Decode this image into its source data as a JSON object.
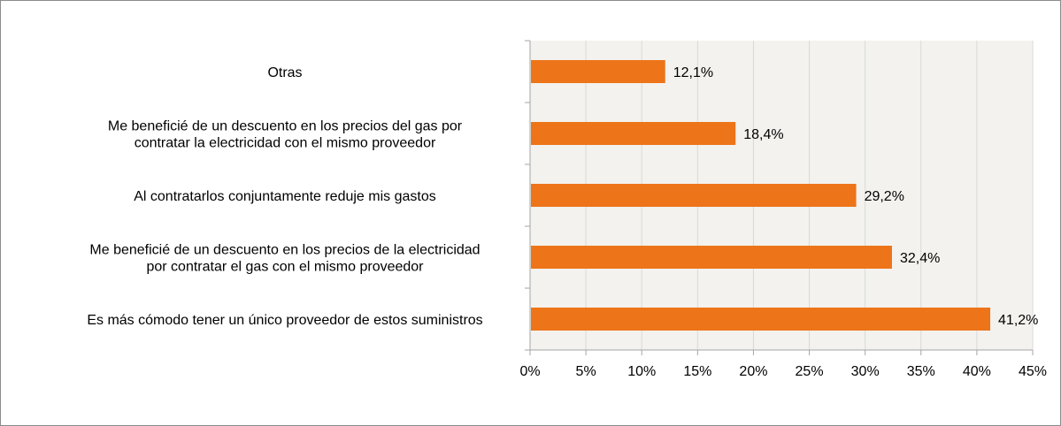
{
  "chart_data": {
    "type": "bar",
    "orientation": "horizontal",
    "categories": [
      [
        "Otras"
      ],
      [
        "Me beneficié de un descuento en los precios del gas por",
        "contratar la electricidad con el mismo proveedor"
      ],
      [
        "Al contratarlos conjuntamente reduje mis gastos"
      ],
      [
        "Me beneficié de un descuento en los precios de la electricidad",
        "por contratar el gas con el mismo proveedor"
      ],
      [
        "Es más cómodo tener un único proveedor de estos suministros"
      ]
    ],
    "values": [
      12.1,
      18.4,
      29.2,
      32.4,
      41.2
    ],
    "value_labels": [
      "12,1%",
      "18,4%",
      "29,2%",
      "32,4%",
      "41,2%"
    ],
    "xlim": [
      0,
      45
    ],
    "x_ticks": [
      0,
      5,
      10,
      15,
      20,
      25,
      30,
      35,
      40,
      45
    ],
    "x_tick_labels": [
      "0%",
      "5%",
      "10%",
      "15%",
      "20%",
      "25%",
      "30%",
      "35%",
      "40%",
      "45%"
    ],
    "title": "",
    "xlabel": "",
    "ylabel": "",
    "grid": true,
    "colors": {
      "bar": "#ED7419",
      "plot_background": "#F3F2EE",
      "gridline": "#D9D9D9",
      "axis": "#A6A6A6"
    }
  }
}
